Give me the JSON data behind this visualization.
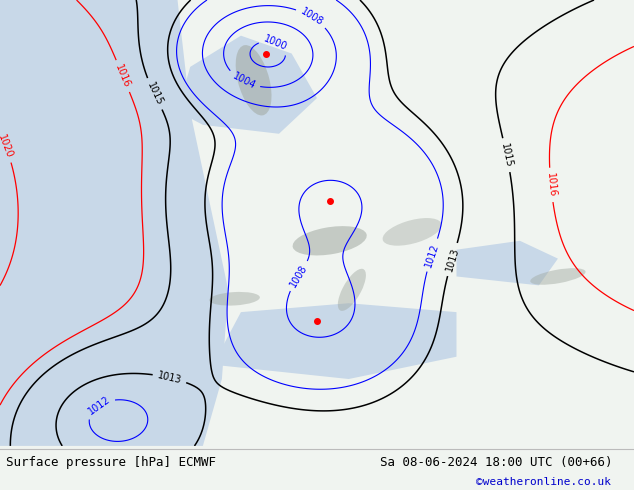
{
  "title_left": "Surface pressure [hPa] ECMWF",
  "title_right": "Sa 08-06-2024 18:00 UTC (00+66)",
  "credit": "©weatheronline.co.uk",
  "credit_color": "#0000cc",
  "bg_color": "#f0f4f0",
  "land_color": "#c8dfc8",
  "sea_color": "#c8d8e8",
  "bottom_bar_color": "#f0f0f0",
  "label_font_size": 9,
  "title_font_size": 9,
  "fig_width": 6.34,
  "fig_height": 4.9,
  "dpi": 100
}
